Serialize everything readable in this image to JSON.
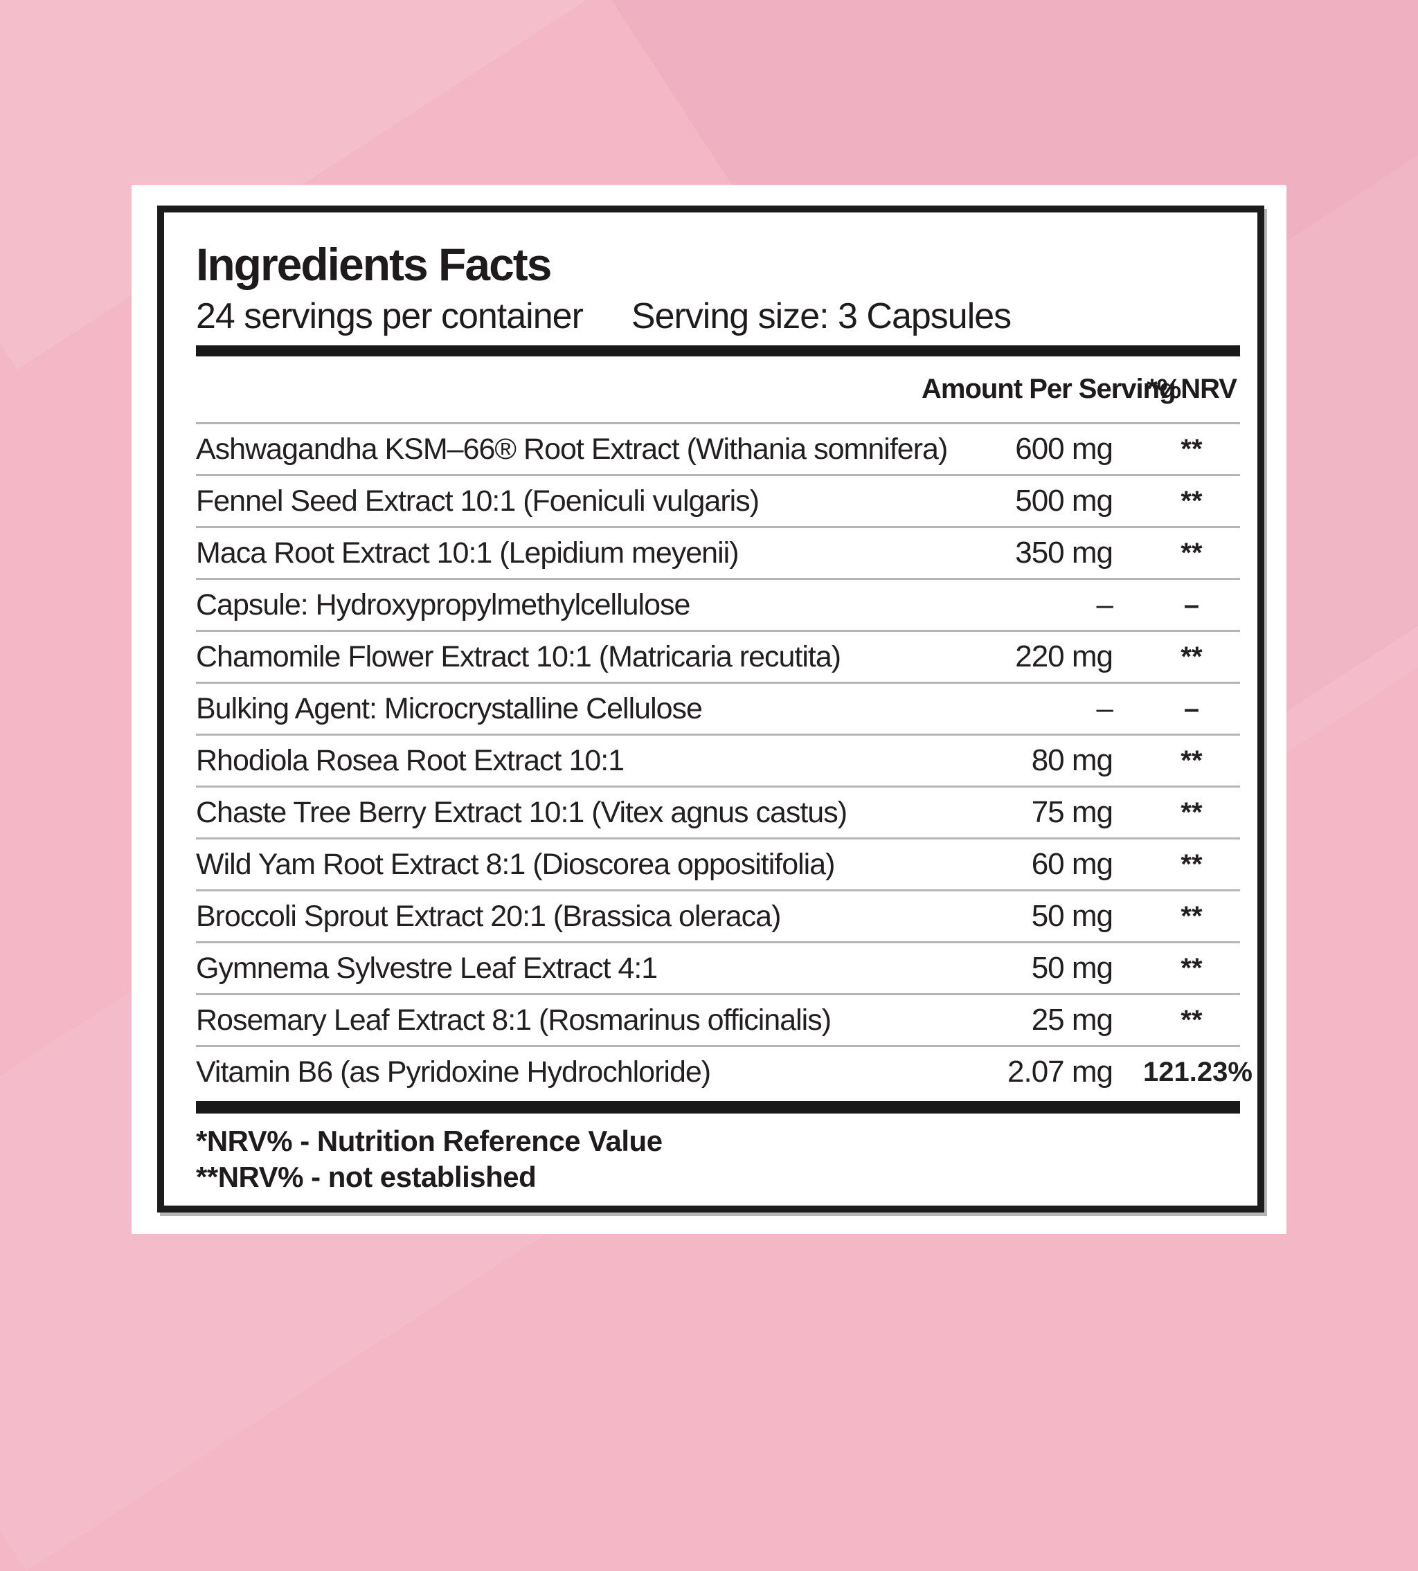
{
  "background": {
    "pink": "#f3b7c6",
    "card_white": "#ffffff",
    "border_black": "#1c1c1c",
    "rule_gray": "#b5b5b5"
  },
  "label": {
    "title": "Ingredients Facts",
    "servings_line": "24 servings per container",
    "serving_size_line": "Serving size: 3 Capsules",
    "columns": {
      "amount": "Amount Per Serving",
      "nrv": "*%NRV"
    },
    "rows": [
      {
        "name": "Ashwagandha KSM–66® Root Extract (Withania somnifera)",
        "amount": "600 mg",
        "nrv": "**"
      },
      {
        "name": "Fennel Seed Extract 10:1 (Foeniculi vulgaris)",
        "amount": "500 mg",
        "nrv": "**"
      },
      {
        "name": "Maca Root Extract 10:1 (Lepidium meyenii)",
        "amount": "350 mg",
        "nrv": "**"
      },
      {
        "name": "Capsule: Hydroxypropylmethylcellulose",
        "amount": "–",
        "nrv": "–"
      },
      {
        "name": "Chamomile Flower Extract 10:1 (Matricaria recutita)",
        "amount": "220 mg",
        "nrv": "**"
      },
      {
        "name": "Bulking Agent: Microcrystalline Cellulose",
        "amount": "–",
        "nrv": "–"
      },
      {
        "name": "Rhodiola Rosea Root Extract 10:1",
        "amount": "80 mg",
        "nrv": "**"
      },
      {
        "name": "Chaste Tree Berry Extract 10:1 (Vitex agnus castus)",
        "amount": "75 mg",
        "nrv": "**"
      },
      {
        "name": "Wild Yam Root Extract 8:1 (Dioscorea oppositifolia)",
        "amount": "60 mg",
        "nrv": "**"
      },
      {
        "name": "Broccoli Sprout Extract 20:1 (Brassica oleraca)",
        "amount": "50 mg",
        "nrv": "**"
      },
      {
        "name": "Gymnema Sylvestre Leaf Extract 4:1",
        "amount": "50 mg",
        "nrv": "**"
      },
      {
        "name": "Rosemary Leaf Extract 8:1 (Rosmarinus officinalis)",
        "amount": "25 mg",
        "nrv": "**"
      },
      {
        "name": "Vitamin B6 (as Pyridoxine Hydrochloride)",
        "amount": "2.07 mg",
        "nrv": "121.23%"
      }
    ],
    "footnotes": [
      "*NRV% - Nutrition Reference Value",
      "**NRV% - not established"
    ]
  }
}
